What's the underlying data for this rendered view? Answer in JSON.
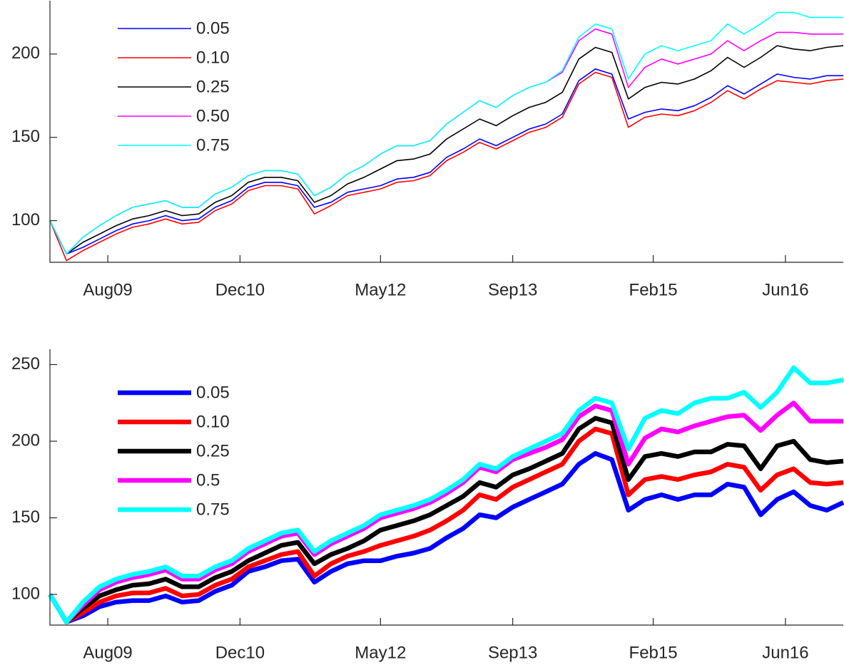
{
  "chart_data": [
    {
      "type": "line",
      "x": [
        "2009-01",
        "2009-03",
        "2009-05",
        "2009-07",
        "2009-09",
        "2009-11",
        "2010-01",
        "2010-03",
        "2010-05",
        "2010-07",
        "2010-09",
        "2010-11",
        "2011-01",
        "2011-03",
        "2011-05",
        "2011-07",
        "2011-09",
        "2011-11",
        "2012-01",
        "2012-03",
        "2012-05",
        "2012-07",
        "2012-09",
        "2012-11",
        "2013-01",
        "2013-03",
        "2013-05",
        "2013-07",
        "2013-09",
        "2013-11",
        "2014-01",
        "2014-03",
        "2014-05",
        "2014-07",
        "2014-09",
        "2014-11",
        "2015-01",
        "2015-03",
        "2015-05",
        "2015-07",
        "2015-09",
        "2015-11",
        "2016-01",
        "2016-03",
        "2016-05",
        "2016-07",
        "2016-09",
        "2016-11",
        "2017-01"
      ],
      "xlim": [
        "2009-01",
        "2017-01"
      ],
      "xticks": [
        {
          "value": "2009-08",
          "label": "Aug09"
        },
        {
          "value": "2010-12",
          "label": "Dec10"
        },
        {
          "value": "2012-05",
          "label": "May12"
        },
        {
          "value": "2013-09",
          "label": "Sep13"
        },
        {
          "value": "2015-02",
          "label": "Feb15"
        },
        {
          "value": "2016-06",
          "label": "Jun16"
        }
      ],
      "ylim": [
        75,
        232
      ],
      "yticks": [
        100,
        150,
        200
      ],
      "legend": "upper left",
      "series": [
        {
          "name": "0.05",
          "color": "#0000ff",
          "values": [
            100,
            80,
            84,
            89,
            94,
            98,
            100,
            103,
            100,
            101,
            108,
            112,
            120,
            123,
            123,
            121,
            108,
            111,
            117,
            119,
            121,
            125,
            126,
            129,
            138,
            143,
            149,
            145,
            150,
            155,
            158,
            164,
            184,
            191,
            188,
            161,
            165,
            167,
            166,
            169,
            174,
            181,
            176,
            182,
            188,
            186,
            185,
            187,
            187
          ]
        },
        {
          "name": "0.10",
          "color": "#ff0000",
          "values": [
            100,
            76,
            82,
            87,
            92,
            96,
            98,
            101,
            98,
            99,
            106,
            110,
            118,
            121,
            121,
            119,
            104,
            109,
            115,
            117,
            119,
            123,
            124,
            127,
            136,
            141,
            147,
            143,
            148,
            153,
            156,
            162,
            182,
            189,
            186,
            156,
            162,
            164,
            163,
            166,
            171,
            178,
            173,
            179,
            184,
            183,
            182,
            184,
            185
          ]
        },
        {
          "name": "0.25",
          "color": "#000000",
          "values": [
            100,
            80,
            87,
            92,
            97,
            101,
            103,
            106,
            103,
            104,
            111,
            115,
            123,
            126,
            126,
            124,
            111,
            115,
            122,
            126,
            131,
            136,
            137,
            140,
            149,
            155,
            161,
            157,
            163,
            168,
            171,
            177,
            197,
            204,
            201,
            173,
            180,
            183,
            182,
            185,
            190,
            198,
            192,
            198,
            205,
            203,
            202,
            204,
            205
          ]
        },
        {
          "name": "0.50",
          "color": "#ff00ff",
          "values": [
            100,
            80,
            90,
            97,
            103,
            108,
            110,
            112,
            108,
            108,
            116,
            120,
            127,
            130,
            130,
            128,
            115,
            120,
            128,
            133,
            140,
            145,
            145,
            148,
            158,
            165,
            172,
            168,
            175,
            180,
            183,
            189,
            208,
            215,
            212,
            180,
            192,
            197,
            194,
            197,
            200,
            208,
            202,
            208,
            213,
            213,
            212,
            212,
            212
          ]
        },
        {
          "name": "0.75",
          "color": "#00ffff",
          "values": [
            100,
            80,
            90,
            97,
            103,
            108,
            110,
            112,
            108,
            108,
            116,
            120,
            127,
            130,
            130,
            128,
            115,
            120,
            128,
            133,
            140,
            145,
            145,
            148,
            158,
            165,
            172,
            168,
            175,
            180,
            183,
            190,
            210,
            218,
            215,
            185,
            200,
            205,
            202,
            205,
            208,
            218,
            212,
            218,
            225,
            225,
            222,
            222,
            222
          ]
        }
      ]
    },
    {
      "type": "line",
      "x": [
        "2009-01",
        "2009-03",
        "2009-05",
        "2009-07",
        "2009-09",
        "2009-11",
        "2010-01",
        "2010-03",
        "2010-05",
        "2010-07",
        "2010-09",
        "2010-11",
        "2011-01",
        "2011-03",
        "2011-05",
        "2011-07",
        "2011-09",
        "2011-11",
        "2012-01",
        "2012-03",
        "2012-05",
        "2012-07",
        "2012-09",
        "2012-11",
        "2013-01",
        "2013-03",
        "2013-05",
        "2013-07",
        "2013-09",
        "2013-11",
        "2014-01",
        "2014-03",
        "2014-05",
        "2014-07",
        "2014-09",
        "2014-11",
        "2015-01",
        "2015-03",
        "2015-05",
        "2015-07",
        "2015-09",
        "2015-11",
        "2016-01",
        "2016-03",
        "2016-05",
        "2016-07",
        "2016-09",
        "2016-11",
        "2017-01"
      ],
      "xlim": [
        "2009-01",
        "2017-01"
      ],
      "xticks": [
        {
          "value": "2009-08",
          "label": "Aug09"
        },
        {
          "value": "2010-12",
          "label": "Dec10"
        },
        {
          "value": "2012-05",
          "label": "May12"
        },
        {
          "value": "2013-09",
          "label": "Sep13"
        },
        {
          "value": "2015-02",
          "label": "Feb15"
        },
        {
          "value": "2016-06",
          "label": "Jun16"
        }
      ],
      "ylim": [
        80,
        260
      ],
      "yticks": [
        100,
        150,
        200,
        250
      ],
      "legend": "upper left",
      "series": [
        {
          "name": "0.05",
          "color": "#0000ff",
          "values": [
            100,
            82,
            86,
            92,
            95,
            96,
            96,
            99,
            95,
            96,
            102,
            106,
            115,
            118,
            122,
            123,
            108,
            115,
            120,
            122,
            122,
            125,
            127,
            130,
            137,
            143,
            152,
            150,
            157,
            162,
            167,
            172,
            185,
            192,
            188,
            155,
            162,
            165,
            162,
            165,
            165,
            172,
            170,
            152,
            162,
            167,
            158,
            155,
            160
          ]
        },
        {
          "name": "0.10",
          "color": "#ff0000",
          "values": [
            100,
            82,
            88,
            95,
            99,
            101,
            101,
            104,
            99,
            100,
            106,
            110,
            118,
            122,
            126,
            128,
            112,
            120,
            125,
            128,
            132,
            135,
            138,
            142,
            148,
            155,
            165,
            162,
            170,
            175,
            180,
            185,
            200,
            208,
            205,
            165,
            175,
            177,
            175,
            178,
            180,
            185,
            183,
            168,
            178,
            182,
            173,
            172,
            173
          ]
        },
        {
          "name": "0.25",
          "color": "#000000",
          "values": [
            100,
            82,
            91,
            99,
            103,
            106,
            107,
            110,
            105,
            105,
            111,
            115,
            122,
            127,
            132,
            134,
            120,
            126,
            130,
            135,
            142,
            145,
            148,
            152,
            158,
            164,
            173,
            170,
            178,
            182,
            187,
            192,
            208,
            215,
            212,
            175,
            190,
            192,
            190,
            193,
            193,
            198,
            197,
            182,
            197,
            200,
            188,
            186,
            187
          ]
        },
        {
          "name": "0.5",
          "color": "#ff00ff",
          "values": [
            100,
            82,
            93,
            103,
            108,
            111,
            113,
            116,
            110,
            110,
            116,
            120,
            128,
            133,
            138,
            140,
            126,
            133,
            138,
            143,
            150,
            153,
            156,
            160,
            166,
            173,
            183,
            180,
            188,
            192,
            196,
            201,
            216,
            223,
            220,
            185,
            202,
            208,
            206,
            210,
            213,
            216,
            217,
            207,
            217,
            225,
            213,
            213,
            213
          ]
        },
        {
          "name": "0.75",
          "color": "#00ffff",
          "values": [
            100,
            82,
            95,
            105,
            110,
            113,
            115,
            118,
            112,
            112,
            118,
            122,
            130,
            135,
            140,
            142,
            128,
            135,
            140,
            145,
            152,
            155,
            158,
            162,
            168,
            175,
            185,
            182,
            190,
            195,
            200,
            205,
            220,
            228,
            225,
            195,
            215,
            220,
            218,
            225,
            228,
            228,
            232,
            222,
            232,
            248,
            238,
            238,
            240
          ]
        }
      ]
    }
  ]
}
